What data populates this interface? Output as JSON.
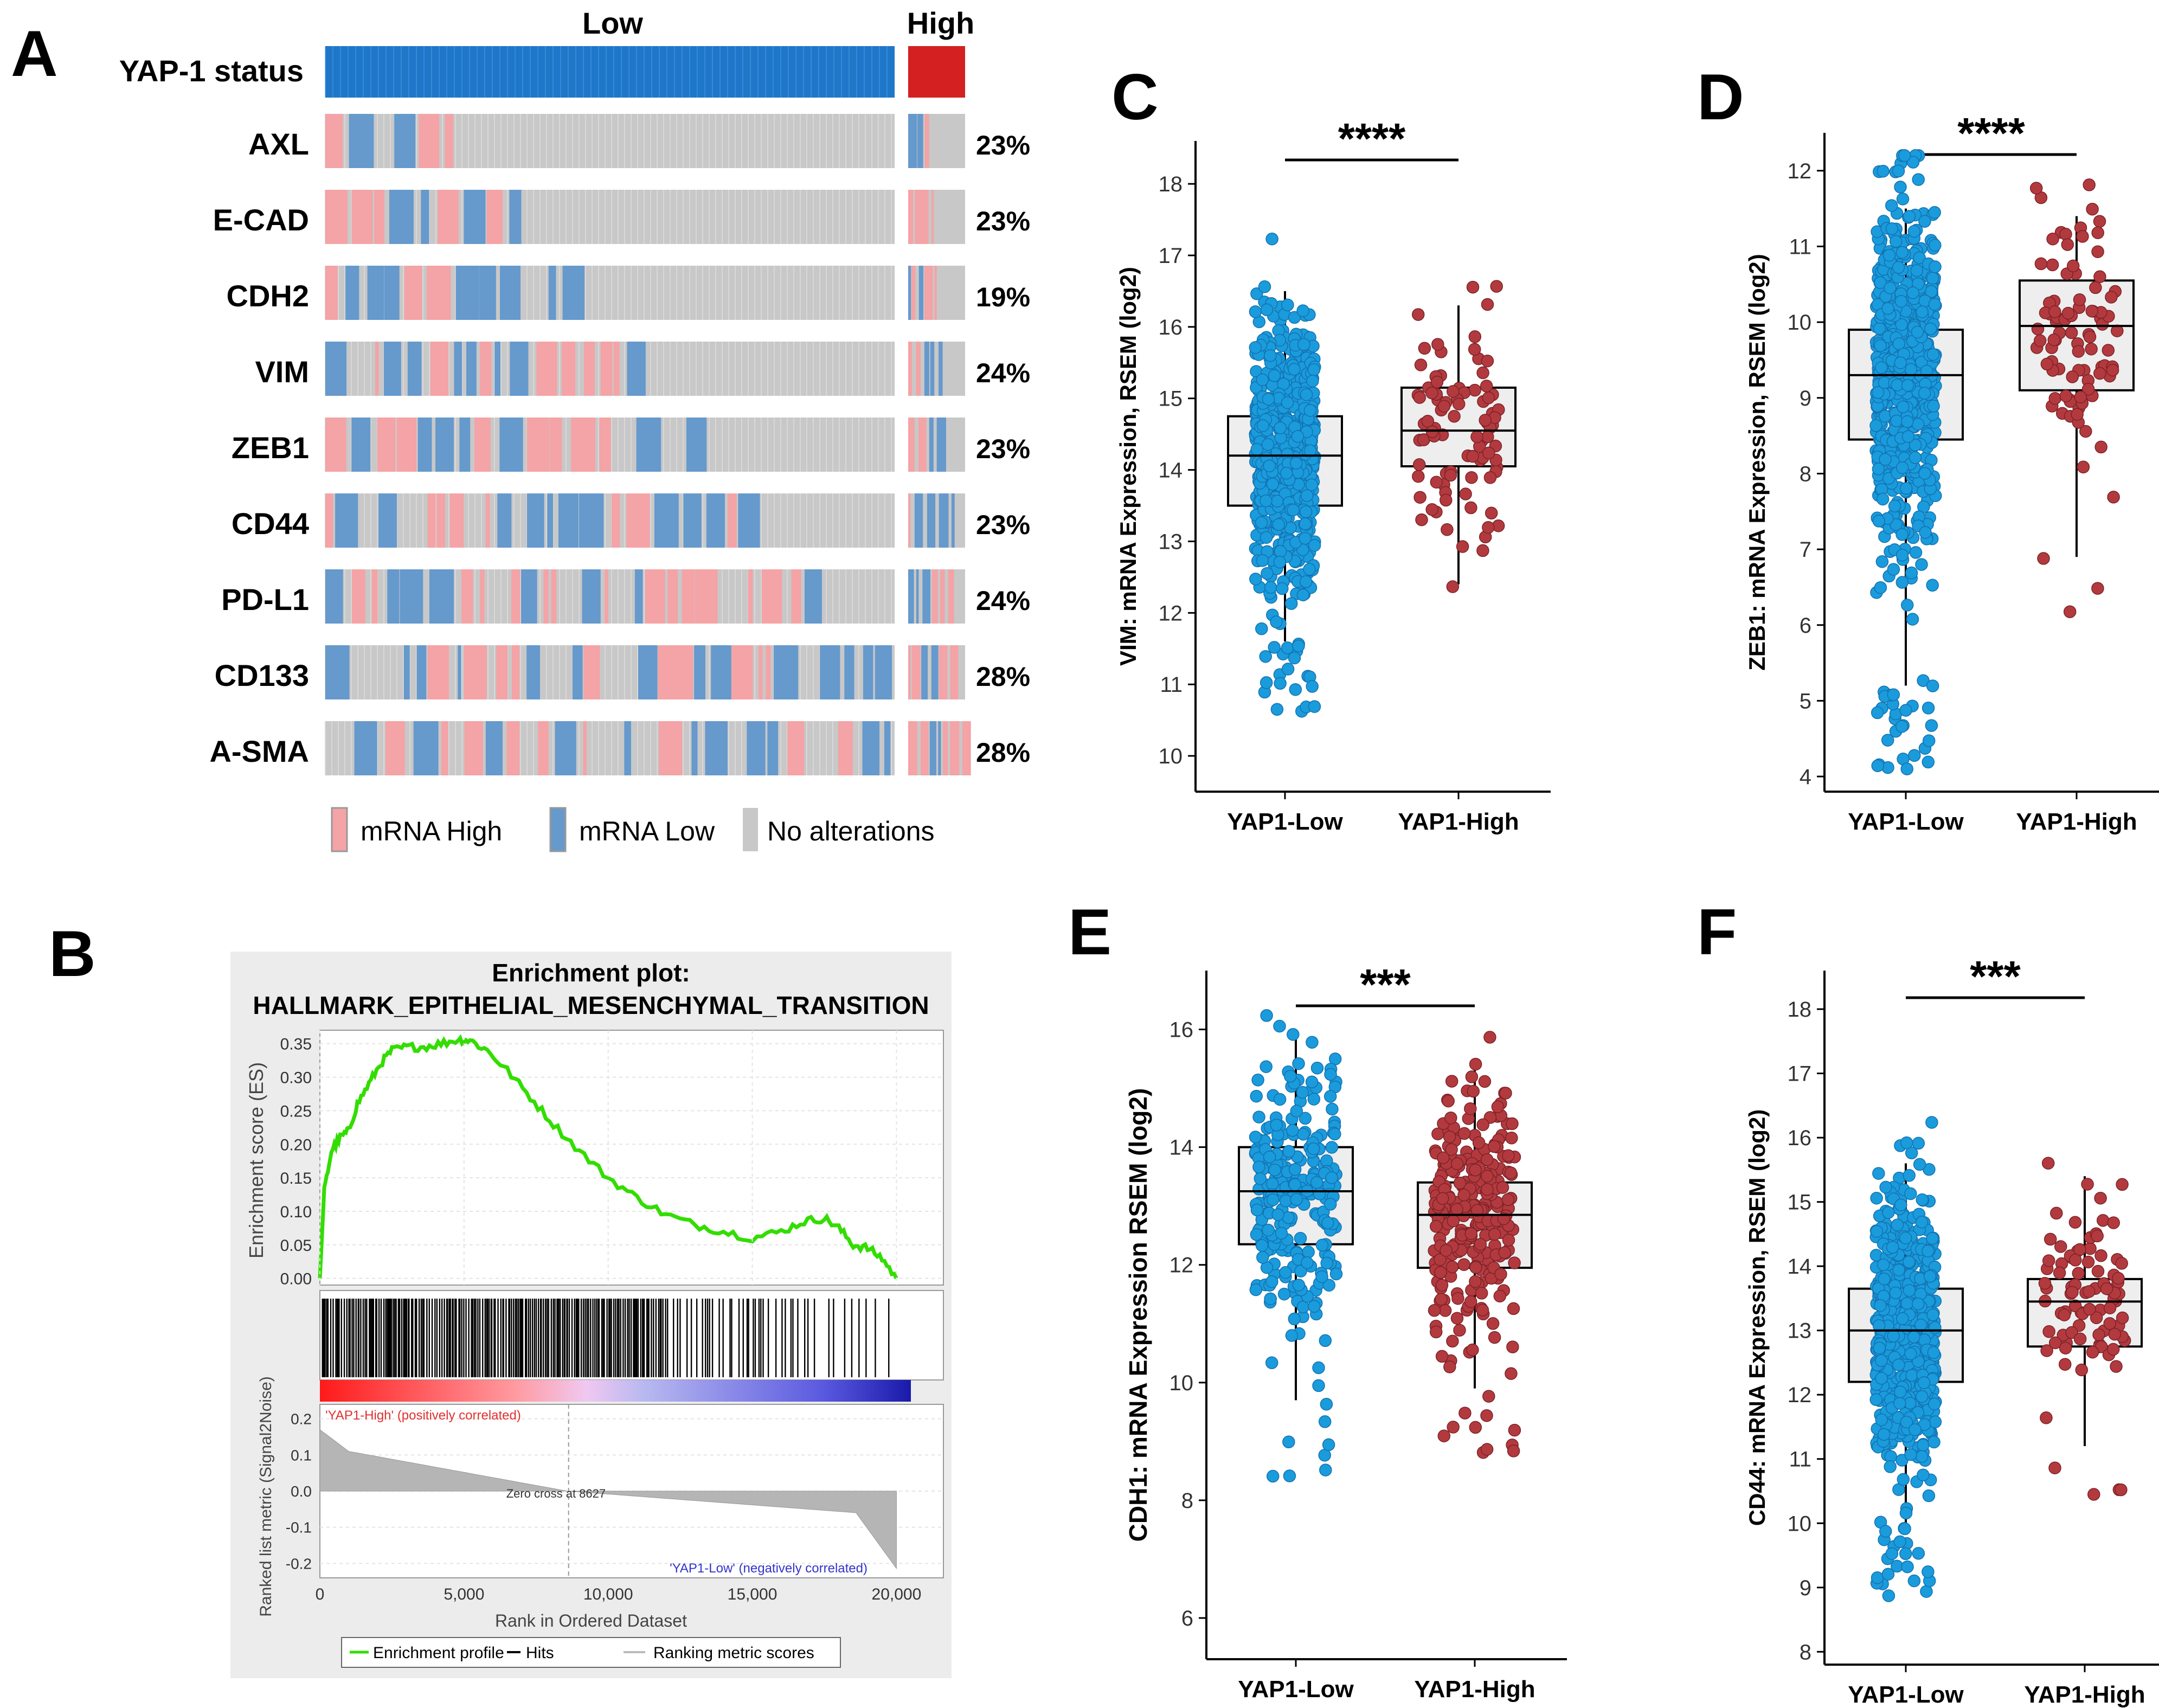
{
  "panel_letters": {
    "a": "A",
    "b": "B",
    "c": "C",
    "d": "D",
    "e": "E",
    "f": "F"
  },
  "colors": {
    "low_blue": "#1a9bdc",
    "high_red": "#b23a3f",
    "mrna_high": "#f4a3a6",
    "mrna_low": "#6699cc",
    "no_alt": "#c8c8c8",
    "status_low": "#1f77c9",
    "status_high": "#d42020",
    "es_green": "#33dd00",
    "box_fill": "#eeeeee"
  },
  "chart_data": [
    {
      "id": "A",
      "type": "heatmap",
      "title": "",
      "status_label": "YAP-1 status",
      "group_labels": [
        "Low",
        "High"
      ],
      "genes": [
        {
          "name": "AXL",
          "percent": "23%"
        },
        {
          "name": "E-CAD",
          "percent": "23%"
        },
        {
          "name": "CDH2",
          "percent": "19%"
        },
        {
          "name": "VIM",
          "percent": "24%"
        },
        {
          "name": "ZEB1",
          "percent": "23%"
        },
        {
          "name": "CD44",
          "percent": "23%"
        },
        {
          "name": "PD-L1",
          "percent": "24%"
        },
        {
          "name": "CD133",
          "percent": "28%"
        },
        {
          "name": "A-SMA",
          "percent": "28%"
        }
      ],
      "legend": [
        "mRNA High",
        "mRNA Low",
        "No alterations"
      ]
    },
    {
      "id": "B",
      "type": "line",
      "title_line1": "Enrichment plot:",
      "title_line2": "HALLMARK_EPITHELIAL_MESENCHYMAL_TRANSITION",
      "ylabel_top": "Enrichment score (ES)",
      "ylabel_bottom": "Ranked list metric (Signal2Noise)",
      "xlabel": "Rank in Ordered Dataset",
      "es_ticks": [
        "0.35",
        "0.30",
        "0.25",
        "0.20",
        "0.15",
        "0.10",
        "0.05",
        "0.00"
      ],
      "metric_ticks": [
        "0.2",
        "0.1",
        "0.0",
        "-0.1",
        "-0.2"
      ],
      "x_ticks": [
        "0",
        "5,000",
        "10,000",
        "15,000",
        "20,000"
      ],
      "xlim": [
        0,
        20500
      ],
      "es_ylim": [
        -0.01,
        0.37
      ],
      "es_points": [
        [
          0,
          0.0
        ],
        [
          150,
          0.13
        ],
        [
          400,
          0.19
        ],
        [
          700,
          0.21
        ],
        [
          1000,
          0.22
        ],
        [
          1300,
          0.26
        ],
        [
          1700,
          0.29
        ],
        [
          2100,
          0.32
        ],
        [
          2500,
          0.34
        ],
        [
          3000,
          0.345
        ],
        [
          3600,
          0.345
        ],
        [
          4200,
          0.35
        ],
        [
          4800,
          0.356
        ],
        [
          5200,
          0.355
        ],
        [
          5800,
          0.34
        ],
        [
          6500,
          0.31
        ],
        [
          7300,
          0.27
        ],
        [
          8100,
          0.23
        ],
        [
          9000,
          0.19
        ],
        [
          10000,
          0.15
        ],
        [
          11000,
          0.12
        ],
        [
          12000,
          0.095
        ],
        [
          13000,
          0.08
        ],
        [
          14000,
          0.07
        ],
        [
          15000,
          0.06
        ],
        [
          16000,
          0.07
        ],
        [
          16800,
          0.085
        ],
        [
          17500,
          0.09
        ],
        [
          18000,
          0.075
        ],
        [
          18500,
          0.05
        ],
        [
          19000,
          0.045
        ],
        [
          19500,
          0.03
        ],
        [
          20000,
          0.0
        ]
      ],
      "zero_cross_label": "Zero cross at 8627",
      "zero_cross": 8627,
      "high_label": "'YAP1-High' (positively correlated)",
      "low_label": "'YAP1-Low' (negatively correlated)",
      "legend": [
        "Enrichment profile",
        "Hits",
        "Ranking metric scores"
      ]
    },
    {
      "id": "C",
      "type": "scatter",
      "ylabel": "VIM: mRNA Expression, RSEM (log2)",
      "categories": [
        "YAP1-Low",
        "YAP1-High"
      ],
      "ylim": [
        9.5,
        18.6
      ],
      "yticks": [
        10,
        11,
        12,
        13,
        14,
        15,
        16,
        17,
        18
      ],
      "significance": "****",
      "boxes": [
        {
          "min": 11.6,
          "q1": 13.5,
          "median": 14.2,
          "q3": 14.75,
          "max": 16.5
        },
        {
          "min": 12.4,
          "q1": 14.05,
          "median": 14.55,
          "q3": 15.15,
          "max": 16.3
        }
      ],
      "n_points": [
        700,
        90
      ]
    },
    {
      "id": "D",
      "type": "scatter",
      "ylabel": "ZEB1: mRNA Expression, RSEM (log2)",
      "categories": [
        "YAP1-Low",
        "YAP1-High"
      ],
      "ylim": [
        3.8,
        12.5
      ],
      "yticks": [
        4,
        5,
        6,
        7,
        8,
        9,
        10,
        11,
        12
      ],
      "significance": "****",
      "boxes": [
        {
          "min": 5.2,
          "q1": 8.45,
          "median": 9.3,
          "q3": 9.9,
          "max": 11.5
        },
        {
          "min": 6.9,
          "q1": 9.1,
          "median": 9.95,
          "q3": 10.55,
          "max": 11.4
        }
      ],
      "n_points": [
        700,
        90
      ]
    },
    {
      "id": "E",
      "type": "scatter",
      "ylabel": "CDH1: mRNA Expression RSEM (log2)",
      "categories": [
        "YAP1-Low",
        "YAP1-High"
      ],
      "ylim": [
        5.3,
        17.0
      ],
      "yticks": [
        6,
        8,
        10,
        12,
        14,
        16
      ],
      "significance": "***",
      "boxes": [
        {
          "min": 9.7,
          "q1": 12.35,
          "median": 13.25,
          "q3": 14.0,
          "max": 16.0
        },
        {
          "min": 9.9,
          "q1": 11.95,
          "median": 12.85,
          "q3": 13.4,
          "max": 15.5
        }
      ],
      "n_points": [
        260,
        280
      ]
    },
    {
      "id": "F",
      "type": "scatter",
      "ylabel": "CD44: mRNA Expression, RSEM (log2)",
      "categories": [
        "YAP1-Low",
        "YAP1-High"
      ],
      "ylim": [
        7.8,
        18.6
      ],
      "yticks": [
        8,
        9,
        10,
        11,
        12,
        13,
        14,
        15,
        16,
        17,
        18
      ],
      "significance": "***",
      "boxes": [
        {
          "min": 10.0,
          "q1": 12.2,
          "median": 13.0,
          "q3": 13.65,
          "max": 15.6
        },
        {
          "min": 11.2,
          "q1": 12.75,
          "median": 13.45,
          "q3": 13.8,
          "max": 15.4
        }
      ],
      "n_points": [
        700,
        90
      ]
    }
  ]
}
